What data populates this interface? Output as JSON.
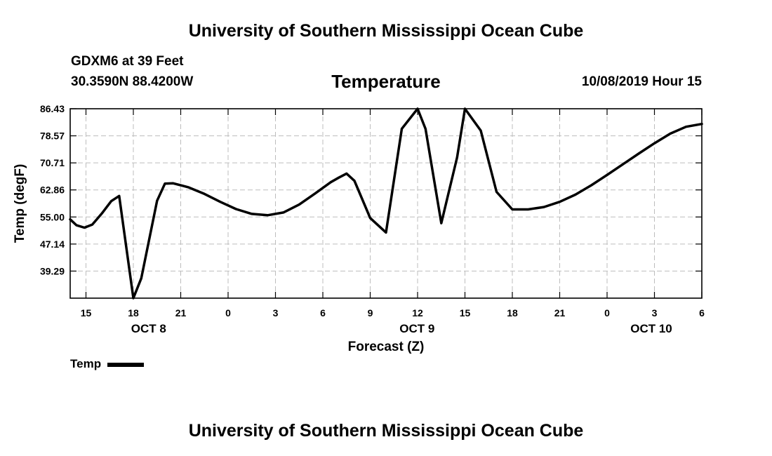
{
  "header": {
    "title": "University of Southern Mississippi Ocean Cube"
  },
  "station": {
    "name": "GDXM6 at 39 Feet",
    "coords": "30.3590N 88.4200W"
  },
  "forecast_time": "10/08/2019 Hour 15",
  "footer": {
    "title": "University of Southern Mississippi Ocean Cube"
  },
  "legend": {
    "label": "Temp"
  },
  "chart_data": {
    "type": "line",
    "title": "Temperature",
    "xlabel": "Forecast (Z)",
    "ylabel": "Temp (degF)",
    "xlim": [
      14,
      54
    ],
    "ylim": [
      31.43,
      86.43
    ],
    "grid": true,
    "yticks": [
      86.43,
      78.57,
      70.71,
      62.86,
      55.0,
      47.14,
      39.29
    ],
    "ytick_labels": [
      "86.43",
      "78.57",
      "70.71",
      "62.86",
      "55.00",
      "47.14",
      "39.29"
    ],
    "xticks": [
      {
        "x": 15,
        "label": "15"
      },
      {
        "x": 18,
        "label": "18"
      },
      {
        "x": 21,
        "label": "21"
      },
      {
        "x": 24,
        "label": "0"
      },
      {
        "x": 27,
        "label": "3"
      },
      {
        "x": 30,
        "label": "6"
      },
      {
        "x": 33,
        "label": "9"
      },
      {
        "x": 36,
        "label": "12"
      },
      {
        "x": 39,
        "label": "15"
      },
      {
        "x": 42,
        "label": "18"
      },
      {
        "x": 45,
        "label": "21"
      },
      {
        "x": 48,
        "label": "0"
      },
      {
        "x": 51,
        "label": "3"
      },
      {
        "x": 54,
        "label": "6"
      }
    ],
    "day_labels": [
      {
        "x": 18.97,
        "label": "OCT 8"
      },
      {
        "x": 35.97,
        "label": "OCT 9"
      },
      {
        "x": 50.8,
        "label": "OCT 10"
      }
    ],
    "series": [
      {
        "name": "Temp",
        "x": [
          14,
          14.4,
          14.9,
          15.4,
          16,
          16.6,
          17.1,
          18,
          18.5,
          19.5,
          20,
          20.5,
          21,
          21.5,
          22.5,
          23.5,
          24.5,
          25.5,
          26.5,
          27.5,
          28.5,
          29.5,
          30.5,
          31,
          31.5,
          32,
          33,
          34,
          35,
          36,
          36.5,
          37.5,
          38.5,
          39,
          40,
          41,
          42,
          43,
          44,
          45,
          46,
          47,
          48,
          49,
          50,
          51,
          52,
          53,
          54
        ],
        "y": [
          54.3,
          52.6,
          51.9,
          52.8,
          56.0,
          59.6,
          61.1,
          31.43,
          37.2,
          59.7,
          64.7,
          64.8,
          64.2,
          63.6,
          61.7,
          59.4,
          57.3,
          55.9,
          55.5,
          56.3,
          58.6,
          61.8,
          65.1,
          66.4,
          67.6,
          65.5,
          54.7,
          50.5,
          80.6,
          86.43,
          80.6,
          53.2,
          72.3,
          86.43,
          80.1,
          62.3,
          57.2,
          57.2,
          57.9,
          59.4,
          61.5,
          64.2,
          67.2,
          70.3,
          73.4,
          76.4,
          79.2,
          81.2,
          82.0
        ]
      }
    ]
  }
}
